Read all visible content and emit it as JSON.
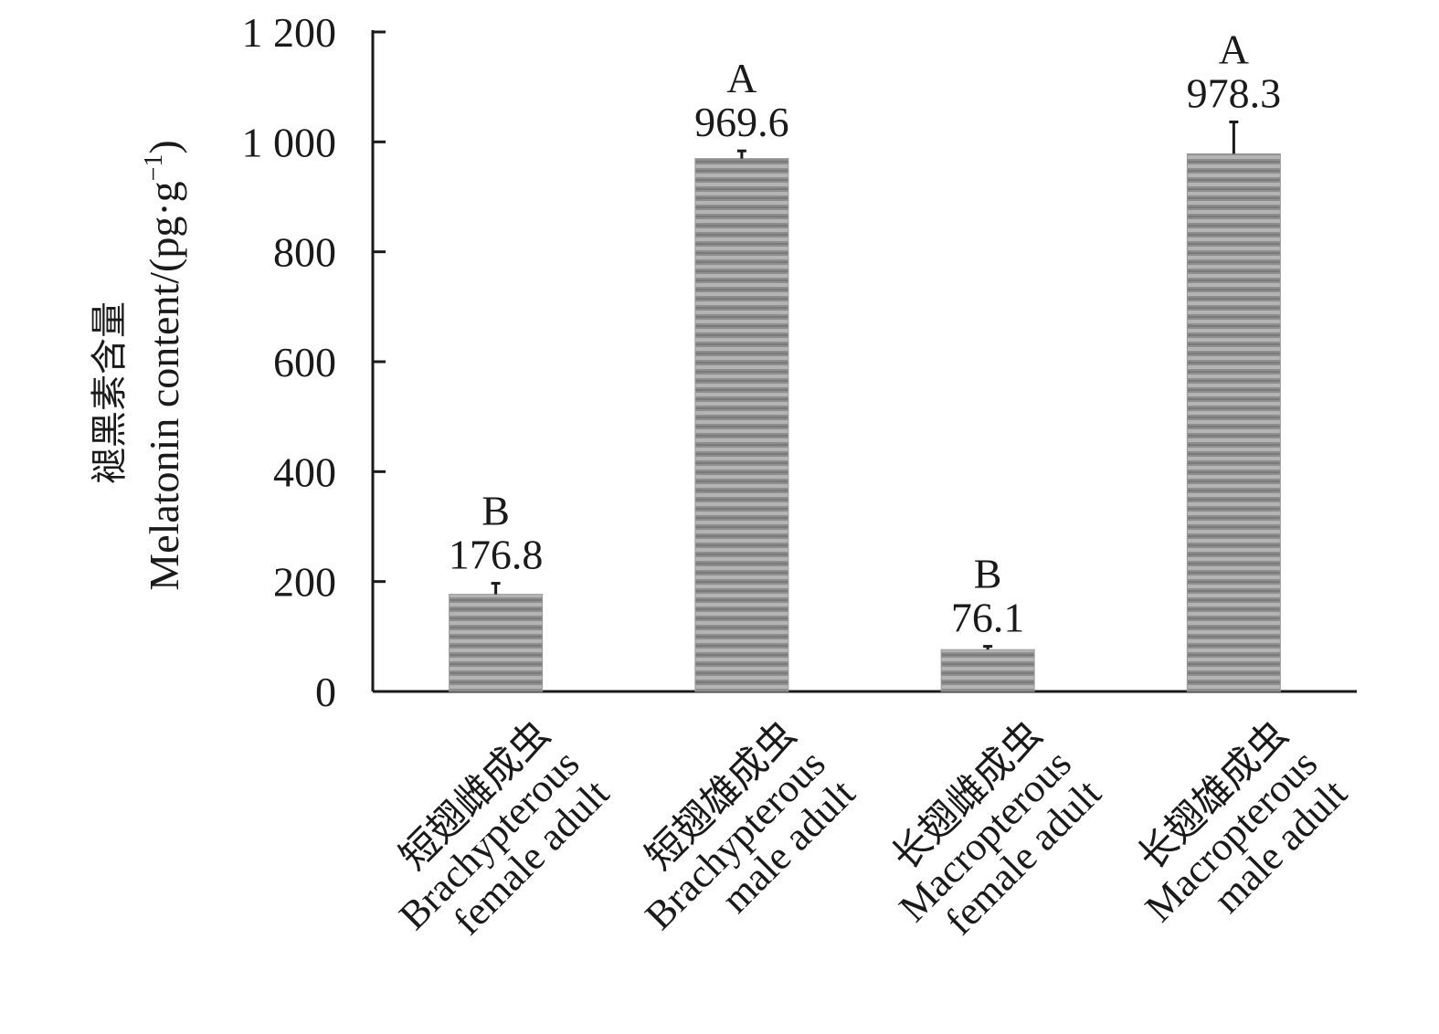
{
  "chart_data": {
    "type": "bar",
    "title": "",
    "ylabel_cn": "褪黑素含量",
    "ylabel_en": "Melatonin content/(pg·g",
    "ylabel_sup": "−1",
    "ylabel_tail": ")",
    "ylim": [
      0,
      1200
    ],
    "yticks": [
      0,
      200,
      400,
      600,
      800,
      1000,
      1200
    ],
    "ytick_labels": [
      "0",
      "200",
      "400",
      "600",
      "800",
      "1 000",
      "1 200"
    ],
    "grid": false,
    "categories": [
      {
        "cn": "短翅雌成虫",
        "en1": "Brachypterous",
        "en2": "female adult"
      },
      {
        "cn": "短翅雄成虫",
        "en1": "Brachypterous",
        "en2": "male adult"
      },
      {
        "cn": "长翅雌成虫",
        "en1": "Macropterous",
        "en2": "female adult"
      },
      {
        "cn": "长翅雄成虫",
        "en1": "Macropterous",
        "en2": "male adult"
      }
    ],
    "values": [
      176.8,
      969.6,
      76.1,
      978.3
    ],
    "value_labels": [
      "176.8",
      "969.6",
      "76.1",
      "978.3"
    ],
    "significance_letters": [
      "B",
      "A",
      "B",
      "A"
    ],
    "error": [
      20,
      14,
      6,
      58
    ],
    "colors": {
      "bar": "#8e8e8e",
      "stripe_light": "#b4b4b4",
      "stripe_dark": "#7a7a7a",
      "axis": "#1a1a1a",
      "text": "#1a1a1a"
    }
  }
}
